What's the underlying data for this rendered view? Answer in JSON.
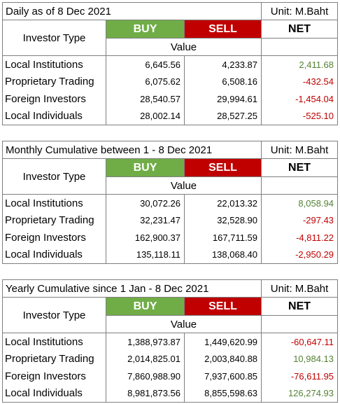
{
  "columns": {
    "investor_type": "Investor Type",
    "buy": "BUY",
    "sell": "SELL",
    "net": "NET",
    "value": "Value"
  },
  "unit": "Unit: M.Baht",
  "colors": {
    "buy_bg": "#70ad47",
    "sell_bg": "#c00000",
    "positive": "#548235",
    "negative": "#c00000"
  },
  "tables": [
    {
      "title": "Daily as of 8 Dec 2021",
      "rows": [
        {
          "name": "Local Institutions",
          "buy": "6,645.56",
          "sell": "4,233.87",
          "net": "2,411.68",
          "sign": "pos"
        },
        {
          "name": "Proprietary Trading",
          "buy": "6,075.62",
          "sell": "6,508.16",
          "net": "-432.54",
          "sign": "neg"
        },
        {
          "name": "Foreign Investors",
          "buy": "28,540.57",
          "sell": "29,994.61",
          "net": "-1,454.04",
          "sign": "neg"
        },
        {
          "name": "Local Individuals",
          "buy": "28,002.14",
          "sell": "28,527.25",
          "net": "-525.10",
          "sign": "neg"
        }
      ]
    },
    {
      "title": "Monthly Cumulative between 1 - 8 Dec 2021",
      "rows": [
        {
          "name": "Local Institutions",
          "buy": "30,072.26",
          "sell": "22,013.32",
          "net": "8,058.94",
          "sign": "pos"
        },
        {
          "name": "Proprietary Trading",
          "buy": "32,231.47",
          "sell": "32,528.90",
          "net": "-297.43",
          "sign": "neg"
        },
        {
          "name": "Foreign Investors",
          "buy": "162,900.37",
          "sell": "167,711.59",
          "net": "-4,811.22",
          "sign": "neg"
        },
        {
          "name": "Local Individuals",
          "buy": "135,118.11",
          "sell": "138,068.40",
          "net": "-2,950.29",
          "sign": "neg"
        }
      ]
    },
    {
      "title": "Yearly Cumulative since 1 Jan - 8 Dec 2021",
      "rows": [
        {
          "name": "Local Institutions",
          "buy": "1,388,973.87",
          "sell": "1,449,620.99",
          "net": "-60,647.11",
          "sign": "neg"
        },
        {
          "name": "Proprietary Trading",
          "buy": "2,014,825.01",
          "sell": "2,003,840.88",
          "net": "10,984.13",
          "sign": "pos"
        },
        {
          "name": "Foreign Investors",
          "buy": "7,860,988.90",
          "sell": "7,937,600.85",
          "net": "-76,611.95",
          "sign": "neg"
        },
        {
          "name": "Local Individuals",
          "buy": "8,981,873.56",
          "sell": "8,855,598.63",
          "net": "126,274.93",
          "sign": "pos"
        }
      ]
    }
  ]
}
